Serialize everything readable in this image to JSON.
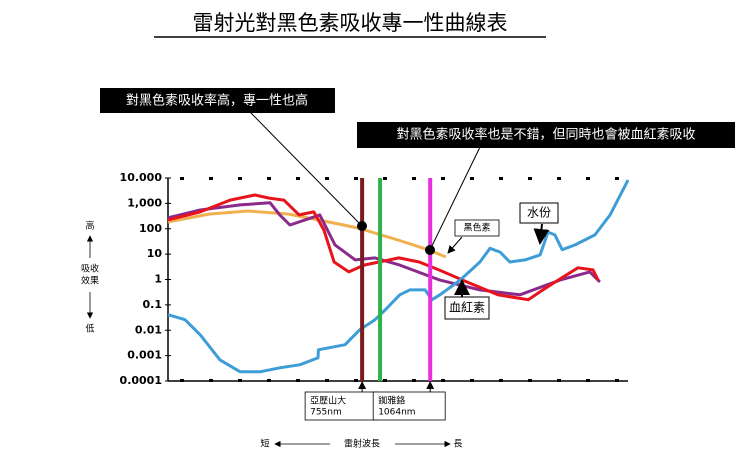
{
  "chart_data": {
    "type": "line",
    "title": "雷射光對黑色素吸收專一性曲線表",
    "log_y": true,
    "xlim": [
      0,
      100
    ],
    "ylim": [
      0.0001,
      10000
    ],
    "yticks": [
      0.0001,
      0.001,
      0.01,
      0.1,
      1,
      10,
      100,
      {
        "value": 1000,
        "label": "1,000"
      },
      {
        "value": 10000,
        "label": "10.000"
      }
    ],
    "y_axis_labels": {
      "high": "高",
      "middle": [
        "吸收",
        "效果"
      ],
      "low": "低"
    },
    "x_axis_labels": {
      "short": "短",
      "middle": "雷射波長",
      "long": "長"
    },
    "series": [
      {
        "color": "#f0b050",
        "x": [
          0,
          9.1,
          17.4,
          26.1,
          34.8,
          41.3,
          50,
          56.5,
          60.4
        ],
        "values": [
          186,
          380,
          500,
          380,
          186,
          107,
          36,
          15,
          7.8
        ]
      },
      {
        "color": "#8b2a8b",
        "x": [
          0,
          7,
          15.7,
          22.2,
          24.3,
          26.5,
          29.8,
          33,
          36.3,
          40.7,
          45,
          50.4,
          59.1,
          67.8,
          76.5,
          85.2,
          91.7,
          93.9
        ],
        "values": [
          270,
          550,
          870,
          1050,
          350,
          141,
          224,
          350,
          23,
          5.9,
          7.1,
          3.7,
          0.95,
          0.39,
          0.25,
          0.95,
          2.0,
          0.8
        ]
      },
      {
        "color": "#e8141c",
        "x": [
          0,
          7,
          13.5,
          18.9,
          22,
          25.2,
          28.5,
          31.7,
          33.9,
          36.1,
          39.3,
          42.6,
          45.9,
          50.2,
          54.6,
          58.9,
          65.4,
          71.7,
          78.3,
          81.5,
          84.8,
          89.1,
          92.4,
          93.5
        ],
        "values": [
          224,
          460,
          1350,
          2140,
          1620,
          1350,
          350,
          460,
          89,
          4.9,
          2.0,
          3.7,
          4.9,
          7.1,
          4.9,
          2.4,
          0.74,
          0.25,
          0.16,
          0.39,
          0.95,
          2.9,
          2.4,
          0.95
        ]
      },
      {
        "color": "#3d9dd6",
        "x": [
          0,
          3.7,
          7,
          11.3,
          15.7,
          20,
          24.3,
          28.7,
          32.6,
          32.7,
          38.5,
          41.7,
          45,
          47.2,
          50.4,
          52.6,
          55.9,
          57.4,
          59.1,
          63.5,
          67.8,
          70,
          72.2,
          74.3,
          77.6,
          80.9,
          82.6,
          84.1,
          85.7,
          88.5,
          92.8,
          96.1,
          100
        ],
        "values": [
          0.041,
          0.026,
          0.0066,
          0.00068,
          0.00023,
          0.00023,
          0.00033,
          0.00044,
          0.00081,
          0.0017,
          0.0027,
          0.0105,
          0.026,
          0.063,
          0.25,
          0.39,
          0.39,
          0.16,
          0.25,
          0.95,
          4.9,
          17,
          12,
          4.9,
          5.9,
          9.3,
          74,
          57,
          15,
          23,
          57,
          350,
          8300
        ]
      }
    ],
    "lasers": [
      {
        "x": 42.2,
        "color": "#7a1a1a",
        "label": [
          "亞歷山大",
          "755nm"
        ]
      },
      {
        "x": 46.1,
        "color": "#2db34a"
      },
      {
        "x": 57,
        "color": "#e62ee0",
        "label": [
          "銣雅鉻",
          "1064nm"
        ]
      }
    ],
    "annotations": {
      "callout_1": "對黑色素吸收率高，專一性也高",
      "callout_2": "對黑色素吸收率也是不錯，但同時也會被血紅素吸收",
      "melanin": "黑色素",
      "water": "水份",
      "hemoglobin": "血紅素"
    }
  }
}
